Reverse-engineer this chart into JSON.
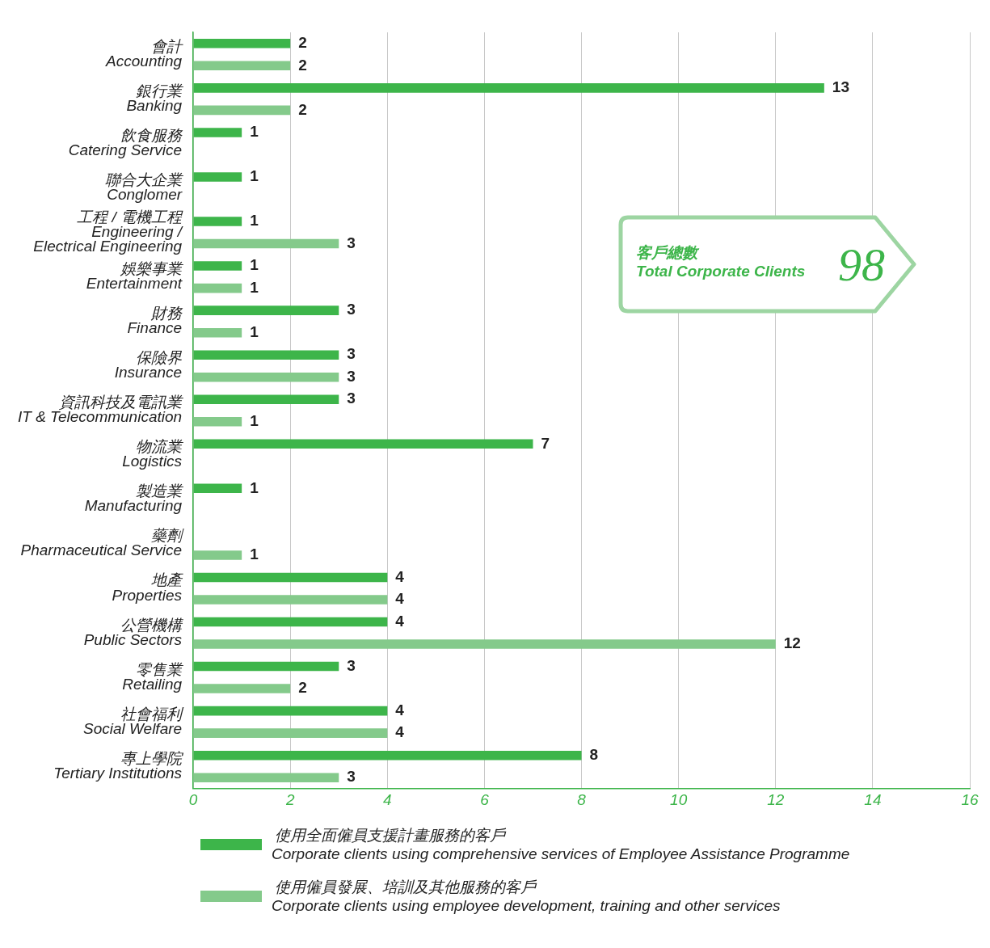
{
  "chart_data": {
    "type": "bar",
    "orientation": "horizontal",
    "categories": [
      "會計\nAccounting",
      "銀行業\nBanking",
      "飲食服務\nCatering Service",
      "聯合大企業\nConglomer",
      "工程 / 電機工程\nEngineering /\nElectrical Engineering",
      "娛樂事業\nEntertainment",
      "財務\nFinance",
      "保險界\nInsurance",
      "資訊科技及電訊業\nIT & Telecommunication",
      "物流業\nLogistics",
      "製造業\nManufacturing",
      "藥劑\nPharmaceutical Service",
      "地產\nProperties",
      "公營機構\nPublic Sectors",
      "零售業\nRetailing",
      "社會福利\nSocial Welfare",
      "專上學院\nTertiary Institutions"
    ],
    "series": [
      {
        "name": "使用全面僱員支援計畫服務的客戶\nCorporate clients using comprehensive services of Employee Assistance Programme",
        "color": "#3db54a",
        "values": [
          2,
          13,
          1,
          1,
          1,
          1,
          3,
          3,
          3,
          7,
          1,
          0,
          4,
          4,
          3,
          4,
          8
        ],
        "value_labels": [
          "2",
          "13",
          "1",
          "1",
          "1",
          "1",
          "3",
          "3",
          "3",
          "7",
          "1",
          null,
          "4",
          "4",
          "3",
          "4",
          "8"
        ]
      },
      {
        "name": "使用僱員發展、培訓及其他服務的客戶\nCorporate clients using employee development, training and other services",
        "color": "#84ca8b",
        "values": [
          2,
          2,
          0,
          0,
          3,
          1,
          1,
          3,
          1,
          0,
          0,
          1,
          4,
          12,
          2,
          4,
          3
        ],
        "value_labels": [
          "2",
          "2",
          null,
          null,
          "3",
          "1",
          "1",
          "3",
          "1",
          null,
          null,
          "1",
          "4",
          "12",
          "2",
          "4",
          "3"
        ]
      }
    ],
    "xlim": [
      0,
      16
    ],
    "xticks": [
      0,
      2,
      4,
      6,
      8,
      10,
      12,
      14,
      16
    ],
    "grid": "x",
    "legend": "bottom",
    "annotations": [
      "客戶總數",
      "Total Corporate Clients",
      "98"
    ]
  }
}
